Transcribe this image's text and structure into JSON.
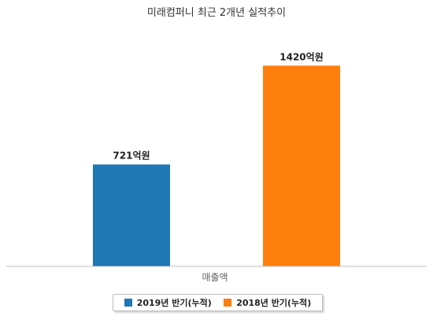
{
  "chart_data": {
    "type": "bar",
    "title": "미래컴퍼니 최근 2개년 실적추이",
    "categories": [
      "매출액"
    ],
    "series": [
      {
        "name": "2019년 반기(누적)",
        "values": [
          721
        ],
        "label": "721억원",
        "color": "#1f77b4"
      },
      {
        "name": "2018년 반기(누적)",
        "values": [
          1420
        ],
        "label": "1420억원",
        "color": "#ff7f0e"
      }
    ],
    "ylim": [
      0,
      1600
    ],
    "grid": false,
    "legend_position": "bottom"
  }
}
